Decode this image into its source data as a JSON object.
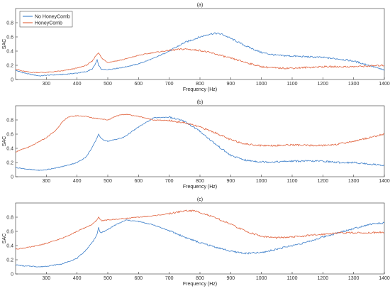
{
  "colors": {
    "no_honeycomb": "#3a7dc9",
    "honeycomb": "#e0603a"
  },
  "legend": {
    "placement": "top-left, inside panel (a)",
    "entries": [
      {
        "label": "No HoneyComb",
        "color": "#3a7dc9"
      },
      {
        "label": "HoneyComb",
        "color": "#e0603a"
      }
    ]
  },
  "chart_data": [
    {
      "type": "line",
      "title": "(a)",
      "xlabel": "Frequency (Hz)",
      "ylabel": "SAC",
      "xlim": [
        200,
        1400
      ],
      "ylim": [
        0,
        1
      ],
      "xticks": [
        300,
        400,
        500,
        600,
        700,
        800,
        900,
        1000,
        1100,
        1200,
        1300,
        1400
      ],
      "yticks": [
        0,
        0.2,
        0.4,
        0.6,
        0.8
      ],
      "ytick_labels": [
        "0",
        "0.2",
        "0.4",
        "0.6",
        "0.8"
      ],
      "series": [
        {
          "name": "No HoneyComb",
          "x": [
            200,
            220,
            250,
            280,
            300,
            350,
            400,
            430,
            450,
            460,
            465,
            470,
            480,
            500,
            550,
            600,
            650,
            700,
            750,
            800,
            830,
            850,
            870,
            900,
            950,
            1000,
            1050,
            1100,
            1150,
            1200,
            1250,
            1300,
            1350,
            1400
          ],
          "y": [
            0.13,
            0.1,
            0.07,
            0.05,
            0.06,
            0.07,
            0.09,
            0.11,
            0.15,
            0.22,
            0.28,
            0.2,
            0.14,
            0.14,
            0.17,
            0.22,
            0.3,
            0.4,
            0.52,
            0.6,
            0.64,
            0.65,
            0.64,
            0.58,
            0.47,
            0.38,
            0.34,
            0.33,
            0.32,
            0.31,
            0.29,
            0.26,
            0.2,
            0.13
          ]
        },
        {
          "name": "HoneyComb",
          "x": [
            200,
            220,
            250,
            300,
            350,
            400,
            430,
            450,
            460,
            470,
            480,
            500,
            550,
            600,
            650,
            700,
            750,
            800,
            850,
            900,
            950,
            1000,
            1050,
            1100,
            1150,
            1200,
            1250,
            1300,
            1350,
            1400
          ],
          "y": [
            0.15,
            0.12,
            0.1,
            0.1,
            0.12,
            0.16,
            0.2,
            0.26,
            0.33,
            0.38,
            0.3,
            0.24,
            0.28,
            0.34,
            0.38,
            0.41,
            0.43,
            0.41,
            0.36,
            0.3,
            0.24,
            0.18,
            0.16,
            0.16,
            0.17,
            0.18,
            0.18,
            0.18,
            0.19,
            0.2
          ]
        }
      ]
    },
    {
      "type": "line",
      "title": "(b)",
      "xlabel": "Frequency (Hz)",
      "ylabel": "SAC",
      "xlim": [
        200,
        1400
      ],
      "ylim": [
        0,
        1
      ],
      "xticks": [
        300,
        400,
        500,
        600,
        700,
        800,
        900,
        1000,
        1100,
        1200,
        1300,
        1400
      ],
      "yticks": [
        0,
        0.2,
        0.4,
        0.6,
        0.8
      ],
      "ytick_labels": [
        "0",
        "0.2",
        "0.4",
        "0.6",
        "0.8"
      ],
      "series": [
        {
          "name": "No HoneyComb",
          "x": [
            200,
            250,
            280,
            300,
            350,
            400,
            430,
            450,
            460,
            470,
            480,
            500,
            550,
            600,
            650,
            700,
            750,
            800,
            850,
            900,
            950,
            1000,
            1050,
            1100,
            1150,
            1200,
            1250,
            1300,
            1350,
            1400
          ],
          "y": [
            0.13,
            0.1,
            0.09,
            0.1,
            0.14,
            0.2,
            0.28,
            0.42,
            0.5,
            0.6,
            0.53,
            0.5,
            0.55,
            0.7,
            0.83,
            0.84,
            0.78,
            0.64,
            0.46,
            0.3,
            0.23,
            0.21,
            0.21,
            0.22,
            0.22,
            0.22,
            0.2,
            0.2,
            0.18,
            0.16
          ]
        },
        {
          "name": "HoneyComb",
          "x": [
            200,
            250,
            300,
            330,
            350,
            370,
            400,
            430,
            450,
            470,
            500,
            530,
            560,
            600,
            650,
            700,
            750,
            800,
            850,
            900,
            950,
            1000,
            1050,
            1100,
            1150,
            1200,
            1250,
            1300,
            1350,
            1380,
            1400
          ],
          "y": [
            0.35,
            0.43,
            0.55,
            0.65,
            0.76,
            0.84,
            0.86,
            0.85,
            0.83,
            0.82,
            0.8,
            0.86,
            0.88,
            0.85,
            0.8,
            0.79,
            0.76,
            0.7,
            0.62,
            0.52,
            0.46,
            0.44,
            0.44,
            0.45,
            0.44,
            0.44,
            0.46,
            0.5,
            0.55,
            0.58,
            0.6
          ]
        }
      ]
    },
    {
      "type": "line",
      "title": "(c)",
      "xlabel": "Frequency (Hz)",
      "ylabel": "SAC",
      "xlim": [
        200,
        1400
      ],
      "ylim": [
        0,
        1
      ],
      "xticks": [
        300,
        400,
        500,
        600,
        700,
        800,
        900,
        1000,
        1100,
        1200,
        1300,
        1400
      ],
      "yticks": [
        0,
        0.2,
        0.4,
        0.6,
        0.8
      ],
      "ytick_labels": [
        "0",
        "0.2",
        "0.4",
        "0.6",
        "0.8"
      ],
      "series": [
        {
          "name": "No HoneyComb",
          "x": [
            200,
            230,
            250,
            280,
            300,
            350,
            400,
            430,
            450,
            465,
            470,
            475,
            490,
            520,
            560,
            600,
            650,
            700,
            750,
            800,
            850,
            900,
            950,
            1000,
            1050,
            1100,
            1150,
            1200,
            1250,
            1300,
            1350,
            1400
          ],
          "y": [
            0.13,
            0.11,
            0.11,
            0.1,
            0.11,
            0.14,
            0.22,
            0.34,
            0.45,
            0.55,
            0.66,
            0.58,
            0.6,
            0.68,
            0.76,
            0.74,
            0.69,
            0.61,
            0.52,
            0.44,
            0.38,
            0.32,
            0.29,
            0.3,
            0.35,
            0.4,
            0.45,
            0.52,
            0.58,
            0.64,
            0.7,
            0.72
          ]
        },
        {
          "name": "HoneyComb",
          "x": [
            200,
            250,
            300,
            350,
            400,
            450,
            465,
            470,
            480,
            500,
            550,
            600,
            650,
            700,
            750,
            780,
            800,
            850,
            900,
            950,
            1000,
            1050,
            1100,
            1150,
            1200,
            1250,
            1300,
            1350,
            1400
          ],
          "y": [
            0.35,
            0.38,
            0.43,
            0.5,
            0.6,
            0.7,
            0.76,
            0.8,
            0.75,
            0.76,
            0.78,
            0.8,
            0.82,
            0.85,
            0.89,
            0.89,
            0.87,
            0.79,
            0.7,
            0.6,
            0.53,
            0.51,
            0.52,
            0.54,
            0.56,
            0.58,
            0.58,
            0.58,
            0.59
          ]
        }
      ]
    }
  ]
}
